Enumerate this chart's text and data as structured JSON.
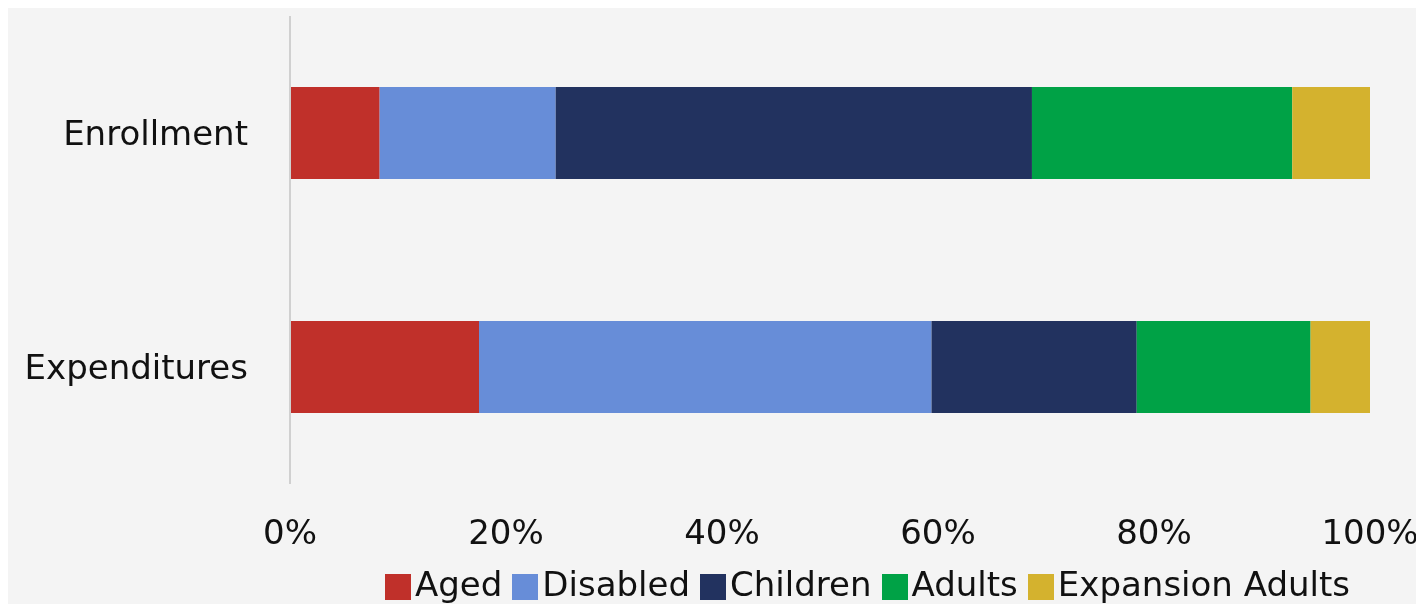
{
  "chart_data": {
    "type": "bar",
    "orientation": "horizontal",
    "stacked": true,
    "categories": [
      "Enrollment",
      "Expenditures"
    ],
    "series": [
      {
        "name": "Aged",
        "color": "#c0302a",
        "values": [
          8.3,
          17.5
        ]
      },
      {
        "name": "Disabled",
        "color": "#678dd8",
        "values": [
          16.3,
          41.9
        ]
      },
      {
        "name": "Children",
        "color": "#22325f",
        "values": [
          44.1,
          19.0
        ]
      },
      {
        "name": "Adults",
        "color": "#00a246",
        "values": [
          24.1,
          16.1
        ]
      },
      {
        "name": "Expansion Adults",
        "color": "#d4b22e",
        "values": [
          7.2,
          5.5
        ]
      }
    ],
    "xlim": [
      0,
      100
    ],
    "xticks": [
      {
        "value": 0,
        "label": "0%"
      },
      {
        "value": 20,
        "label": "20%"
      },
      {
        "value": 40,
        "label": "40%"
      },
      {
        "value": 60,
        "label": "60%"
      },
      {
        "value": 80,
        "label": "80%"
      },
      {
        "value": 100,
        "label": "100%"
      }
    ],
    "grid": false,
    "legend": "bottom right"
  }
}
